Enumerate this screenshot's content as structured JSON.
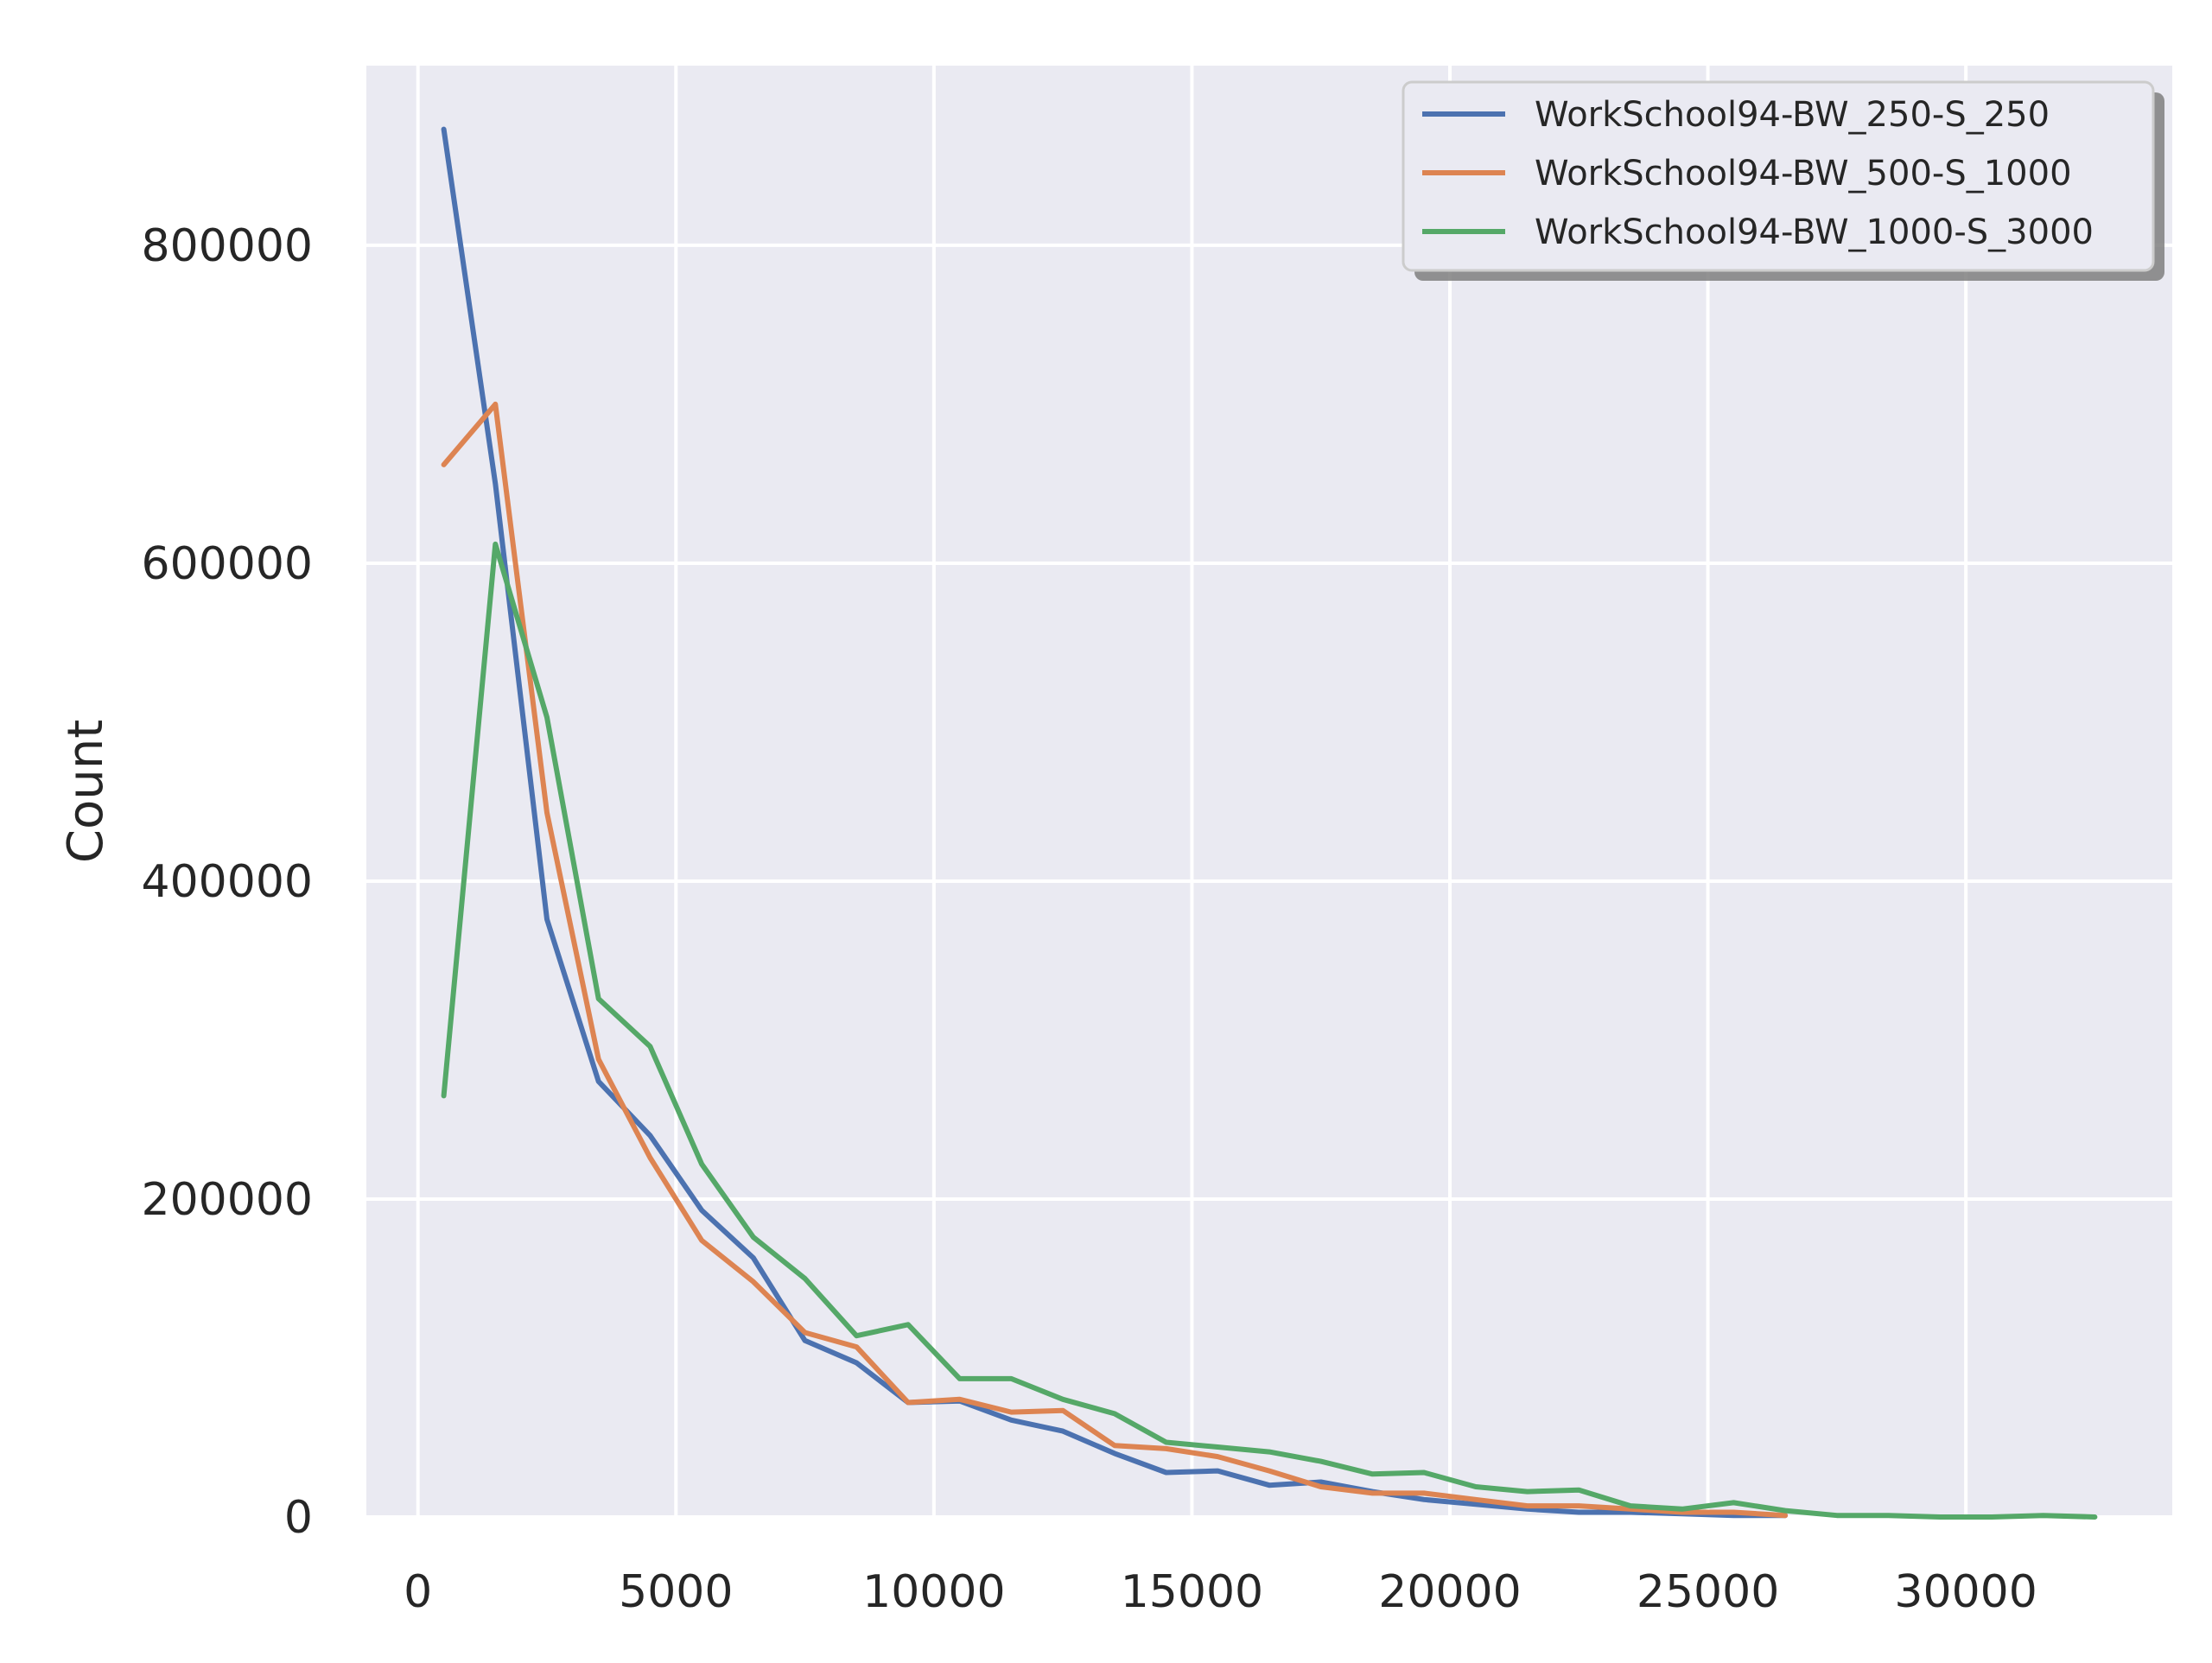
{
  "chart_data": {
    "type": "line",
    "title": "",
    "xlabel": "",
    "ylabel": "Count",
    "xlim": [
      -1000,
      34000
    ],
    "ylim": [
      0,
      913000
    ],
    "xticks": [
      0,
      5000,
      10000,
      15000,
      20000,
      25000,
      30000
    ],
    "xtick_labels": [
      "0",
      "5000",
      "10000",
      "15000",
      "20000",
      "25000",
      "30000"
    ],
    "yticks": [
      0,
      200000,
      400000,
      600000,
      800000
    ],
    "ytick_labels": [
      "0",
      "200000",
      "400000",
      "600000",
      "800000"
    ],
    "grid": true,
    "legend_position": "upper right",
    "colors": {
      "background": "#eaeaf2",
      "grid": "#ffffff",
      "series": [
        "#4c72b0",
        "#dd8452",
        "#55a868"
      ]
    },
    "series": [
      {
        "name": "WorkSchool94-BW_250-S_250",
        "x": [
          500,
          1500,
          2500,
          3500,
          4500,
          5500,
          6500,
          7500,
          8500,
          9500,
          10500,
          11500,
          12500,
          13500,
          14500,
          15500,
          16500,
          17500,
          18500,
          19500,
          20500,
          21500,
          22500,
          23500,
          24500,
          25500,
          26500
        ],
        "y": [
          873000,
          650000,
          376000,
          274000,
          240000,
          193000,
          163000,
          111000,
          97000,
          72000,
          73000,
          61000,
          54000,
          40000,
          28000,
          29000,
          20000,
          22000,
          16000,
          11000,
          8000,
          5000,
          3000,
          3000,
          2000,
          1000,
          1000
        ]
      },
      {
        "name": "WorkSchool94-BW_500-S_1000",
        "x": [
          500,
          1500,
          2500,
          3500,
          4500,
          5500,
          6500,
          7500,
          8500,
          9500,
          10500,
          11500,
          12500,
          13500,
          14500,
          15500,
          16500,
          17500,
          18500,
          19500,
          20500,
          21500,
          22500,
          23500,
          24500,
          25500,
          26500
        ],
        "y": [
          662000,
          700000,
          443000,
          288000,
          226000,
          174000,
          148000,
          116000,
          107000,
          72000,
          74000,
          66000,
          67000,
          45000,
          43000,
          38000,
          29000,
          19000,
          15000,
          15000,
          11000,
          7000,
          7000,
          5000,
          3000,
          3000,
          1000
        ]
      },
      {
        "name": "WorkSchool94-BW_1000-S_3000",
        "x": [
          500,
          1500,
          2500,
          3500,
          4500,
          5500,
          6500,
          7500,
          8500,
          9500,
          10500,
          11500,
          12500,
          13500,
          14500,
          15500,
          16500,
          17500,
          18500,
          19500,
          20500,
          21500,
          22500,
          23500,
          24500,
          25500,
          26500,
          27500,
          28500,
          29500,
          30500,
          31500,
          32500
        ],
        "y": [
          265000,
          612000,
          503000,
          326000,
          296000,
          222000,
          176000,
          150000,
          114000,
          121000,
          87000,
          87000,
          74000,
          65000,
          47000,
          44000,
          41000,
          35000,
          27000,
          28000,
          19000,
          16000,
          17000,
          7000,
          5000,
          9000,
          4000,
          1000,
          1000,
          0,
          0,
          1000,
          0
        ]
      }
    ]
  }
}
